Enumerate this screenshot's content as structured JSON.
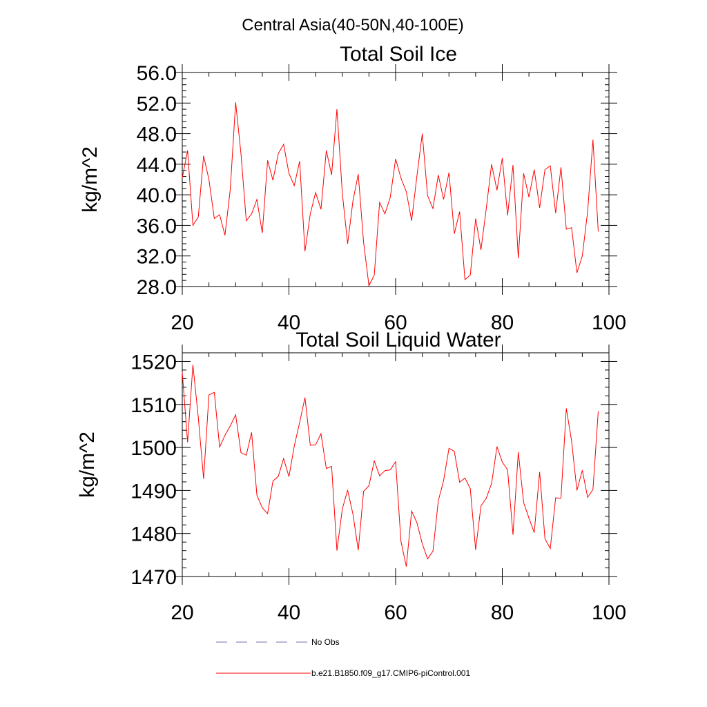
{
  "figure_title": "Central Asia(40-50N,40-100E)",
  "chart_data": [
    {
      "type": "line",
      "title": "Total Soil Ice",
      "xlabel": "",
      "ylabel": "kg/m^2",
      "xlim": [
        20,
        100
      ],
      "ylim": [
        28,
        56
      ],
      "xticks": [
        20,
        40,
        60,
        80,
        100
      ],
      "xtick_labels": [
        "20",
        "40",
        "60",
        "80",
        "100"
      ],
      "yticks": [
        28,
        32,
        36,
        40,
        44,
        48,
        52,
        56
      ],
      "ytick_labels": [
        "28.0",
        "32.0",
        "36.0",
        "40.0",
        "44.0",
        "48.0",
        "52.0",
        "56.0"
      ],
      "grid": false,
      "series": [
        {
          "name": "b.e21.B1850.f09_g17.CMIP6-piControl.001",
          "color": "#ff0000",
          "x": [
            20,
            21,
            22,
            23,
            24,
            25,
            26,
            27,
            28,
            29,
            30,
            31,
            32,
            33,
            34,
            35,
            36,
            37,
            38,
            39,
            40,
            41,
            42,
            43,
            44,
            45,
            46,
            47,
            48,
            49,
            50,
            51,
            52,
            53,
            54,
            55,
            56,
            57,
            58,
            59,
            60,
            61,
            62,
            63,
            64,
            65,
            66,
            67,
            68,
            69,
            70,
            71,
            72,
            73,
            74,
            75,
            76,
            77,
            78,
            79,
            80,
            81,
            82,
            83,
            84,
            85,
            86,
            87,
            88,
            89,
            90,
            91,
            92,
            93,
            94,
            95,
            96,
            97,
            98
          ],
          "values": [
            42.2,
            45.8,
            36.0,
            37.1,
            45.1,
            42.0,
            36.9,
            37.4,
            34.7,
            40.7,
            52.1,
            45.4,
            36.6,
            37.5,
            39.4,
            35.0,
            44.5,
            41.9,
            45.4,
            46.6,
            42.8,
            41.2,
            44.4,
            32.6,
            37.5,
            40.3,
            38.1,
            45.8,
            42.6,
            51.2,
            40.2,
            33.6,
            39.2,
            42.7,
            33.8,
            28.1,
            29.5,
            39.0,
            37.5,
            39.7,
            44.7,
            42.2,
            40.4,
            36.6,
            42.5,
            48.0,
            39.9,
            38.2,
            42.6,
            39.4,
            42.9,
            34.9,
            37.8,
            28.9,
            29.5,
            36.9,
            32.8,
            38.2,
            44.0,
            40.6,
            44.8,
            37.3,
            43.9,
            31.7,
            42.8,
            39.7,
            43.3,
            38.3,
            43.3,
            43.8,
            37.6,
            43.6,
            35.5,
            35.7,
            29.8,
            32.0,
            37.8,
            47.2,
            35.2
          ]
        }
      ]
    },
    {
      "type": "line",
      "title": "Total Soil Liquid Water",
      "xlabel": "",
      "ylabel": "kg/m^2",
      "xlim": [
        20,
        100
      ],
      "ylim": [
        1470,
        1522
      ],
      "xticks": [
        20,
        40,
        60,
        80,
        100
      ],
      "xtick_labels": [
        "20",
        "40",
        "60",
        "80",
        "100"
      ],
      "yticks": [
        1470,
        1480,
        1490,
        1500,
        1510,
        1520
      ],
      "ytick_labels": [
        "1470",
        "1480",
        "1490",
        "1500",
        "1510",
        "1520"
      ],
      "grid": false,
      "series": [
        {
          "name": "b.e21.B1850.f09_g17.CMIP6-piControl.001",
          "color": "#ff0000",
          "x": [
            20,
            21,
            22,
            23,
            24,
            25,
            26,
            27,
            28,
            29,
            30,
            31,
            32,
            33,
            34,
            35,
            36,
            37,
            38,
            39,
            40,
            41,
            42,
            43,
            44,
            45,
            46,
            47,
            48,
            49,
            50,
            51,
            52,
            53,
            54,
            55,
            56,
            57,
            58,
            59,
            60,
            61,
            62,
            63,
            64,
            65,
            66,
            67,
            68,
            69,
            70,
            71,
            72,
            73,
            74,
            75,
            76,
            77,
            78,
            79,
            80,
            81,
            82,
            83,
            84,
            85,
            86,
            87,
            88,
            89,
            90,
            91,
            92,
            93,
            94,
            95,
            96,
            97,
            98
          ],
          "values": [
            1517.5,
            1501.2,
            1519.2,
            1507.0,
            1492.7,
            1512.2,
            1512.8,
            1500.1,
            1502.8,
            1505.0,
            1507.6,
            1498.8,
            1498.2,
            1503.5,
            1488.9,
            1486.0,
            1484.6,
            1492.2,
            1493.3,
            1497.4,
            1493.2,
            1500.3,
            1505.8,
            1511.6,
            1500.5,
            1500.6,
            1503.2,
            1495.1,
            1495.6,
            1476.0,
            1485.7,
            1490.1,
            1484.5,
            1476.1,
            1489.8,
            1491.1,
            1496.9,
            1493.4,
            1494.6,
            1494.8,
            1496.7,
            1478.2,
            1472.3,
            1485.2,
            1482.5,
            1477.6,
            1474.1,
            1475.9,
            1487.6,
            1492.3,
            1499.8,
            1499.1,
            1491.9,
            1492.9,
            1490.4,
            1476.2,
            1486.4,
            1488.2,
            1491.6,
            1500.2,
            1496.6,
            1494.8,
            1479.7,
            1498.9,
            1487.2,
            1483.6,
            1480.2,
            1494.3,
            1478.8,
            1476.5,
            1488.3,
            1488.2,
            1509.1,
            1501.5,
            1490.0,
            1494.7,
            1488.4,
            1490.2,
            1508.4
          ]
        }
      ]
    }
  ],
  "legend": {
    "placement": "bottom-center",
    "entries": [
      {
        "label": "No Obs",
        "color": "#6f6fb3",
        "style": "dashed"
      },
      {
        "label": "b.e21.B1850.f09_g17.CMIP6-piControl.001",
        "color": "#ff0000",
        "style": "solid"
      }
    ]
  }
}
